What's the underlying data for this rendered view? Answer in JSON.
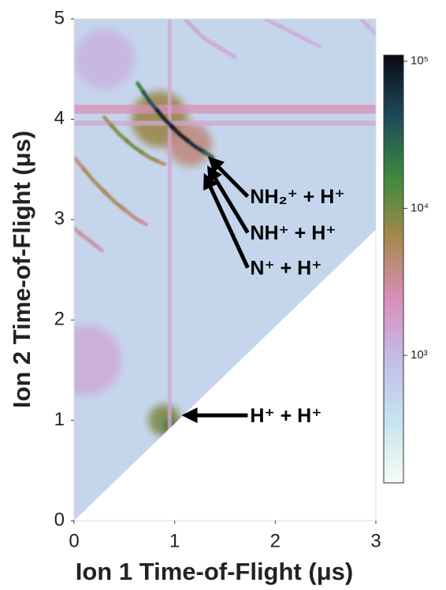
{
  "chart_data": {
    "type": "heatmap",
    "xlabel": "Ion 1 Time-of-Flight (μs)",
    "ylabel": "Ion 2 Time-of-Flight (μs)",
    "xlim": [
      0,
      3
    ],
    "ylim": [
      0,
      5
    ],
    "xticks": [
      0,
      1,
      2,
      3
    ],
    "yticks": [
      0,
      1,
      2,
      3,
      4,
      5
    ],
    "colormap": [
      "#f7fbf4",
      "#c6e4ee",
      "#c4bde8",
      "#d98fbb",
      "#a7884e",
      "#3e8a3c",
      "#1e4a5a",
      "#0a0a14"
    ],
    "clim": [
      136,
      110000
    ],
    "log_color": true,
    "cticks": [
      {
        "value": 1000,
        "label": "10³"
      },
      {
        "value": 10000,
        "label": "10⁴"
      },
      {
        "value": 100000,
        "label": "10⁵"
      }
    ],
    "background": 500,
    "mask": {
      "x": [
        0,
        3
      ],
      "y": [
        0,
        2.9
      ]
    },
    "bands": [
      {
        "axis": "y",
        "at": 4.1,
        "width": 0.09,
        "value": 2500
      },
      {
        "axis": "y",
        "at": 3.96,
        "width": 0.05,
        "value": 1500
      },
      {
        "axis": "x",
        "at": 0.95,
        "width": 0.04,
        "value": 1500
      }
    ],
    "blobs": [
      {
        "x": 0.12,
        "y": 1.6,
        "r": 0.35,
        "value": 1300
      },
      {
        "x": 0.3,
        "y": 4.6,
        "r": 0.3,
        "value": 1100
      },
      {
        "x": 0.85,
        "y": 4.0,
        "r": 0.28,
        "value": 7000
      },
      {
        "x": 1.15,
        "y": 3.75,
        "r": 0.22,
        "value": 4000
      },
      {
        "x": 0.9,
        "y": 1.0,
        "r": 0.16,
        "value": 9000
      },
      {
        "x": 0.95,
        "y": 0.95,
        "r": 0.05,
        "value": 30000
      }
    ],
    "tracks": [
      {
        "x": [
          0.63,
          0.75,
          0.9,
          1.05,
          1.2,
          1.38
        ],
        "y": [
          4.36,
          4.18,
          4.0,
          3.85,
          3.73,
          3.62
        ],
        "values": [
          20000,
          40000,
          80000,
          90000,
          70000,
          30000
        ]
      },
      {
        "x": [
          0.3,
          0.45,
          0.6,
          0.75,
          0.9
        ],
        "y": [
          4.02,
          3.85,
          3.72,
          3.62,
          3.55
        ],
        "values": [
          6000,
          9000,
          10000,
          8000,
          5000
        ]
      },
      {
        "x": [
          0.0,
          0.2,
          0.4,
          0.6,
          0.72
        ],
        "y": [
          3.62,
          3.38,
          3.18,
          3.02,
          2.95
        ],
        "values": [
          4000,
          6000,
          6000,
          4000,
          3000
        ]
      },
      {
        "x": [
          0.0,
          0.14,
          0.28
        ],
        "y": [
          2.91,
          2.8,
          2.69
        ],
        "values": [
          3000,
          3000,
          2500
        ]
      },
      {
        "x": [
          1.1,
          1.3,
          1.6
        ],
        "y": [
          5.0,
          4.8,
          4.62
        ],
        "values": [
          1500,
          1500,
          1300
        ]
      },
      {
        "x": [
          1.9,
          2.2,
          2.45
        ],
        "y": [
          5.0,
          4.85,
          4.72
        ],
        "values": [
          1300,
          1300,
          1200
        ]
      },
      {
        "x": [
          2.85,
          3.0
        ],
        "y": [
          5.0,
          4.85
        ],
        "values": [
          1300,
          1200
        ]
      }
    ],
    "annotations": [
      {
        "text": "NH₂⁺ + H⁺",
        "xy": [
          1.38,
          3.58
        ],
        "xytext": [
          1.75,
          3.23
        ]
      },
      {
        "text": "NH⁺ + H⁺",
        "xy": [
          1.36,
          3.48
        ],
        "xytext": [
          1.75,
          2.87
        ]
      },
      {
        "text": "N⁺ + H⁺",
        "xy": [
          1.32,
          3.4
        ],
        "xytext": [
          1.75,
          2.52
        ]
      },
      {
        "text": "H⁺ + H⁺",
        "xy": [
          1.14,
          1.05
        ],
        "xytext": [
          1.75,
          1.05
        ]
      }
    ]
  }
}
